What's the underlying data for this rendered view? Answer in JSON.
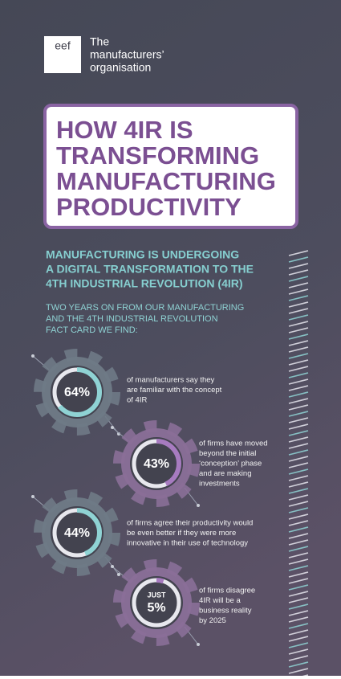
{
  "header": {
    "logo": "eef",
    "org_lines": [
      "The",
      "manufacturers’",
      "organisation"
    ]
  },
  "title_lines": [
    "HOW 4IR IS",
    "TRANSFORMING",
    "MANUFACTURING",
    "PRODUCTIVITY"
  ],
  "subtitle_lines": [
    "MANUFACTURING IS UNDERGOING",
    "A DIGITAL TRANSFORMATION TO THE",
    "4TH INDUSTRIAL REVOLUTION (4IR)"
  ],
  "intro_lines": [
    "TWO YEARS ON FROM OUR MANUFACTURING",
    "AND THE 4TH INDUSTRIAL REVOLUTION",
    "FACT CARD WE FIND:"
  ],
  "stats": [
    {
      "value": 64,
      "label": "64%",
      "color": "#8fd3d4",
      "lines": [
        "of manufacturers say they",
        "are familiar with the concept",
        "of 4IR"
      ]
    },
    {
      "value": 43,
      "label": "43%",
      "color": "#a77bc0",
      "lines": [
        "of firms have moved",
        "beyond the initial",
        "‘conception’ phase",
        "and are making",
        "investments"
      ]
    },
    {
      "value": 44,
      "label": "44%",
      "color": "#8fd3d4",
      "lines": [
        "of firms agree their productivity would",
        "be even better if they were more",
        "innovative in their use of technology"
      ]
    },
    {
      "value": 5,
      "label": "5%",
      "prefix": "JUST",
      "color": "#a77bc0",
      "lines": [
        "of firms disagree",
        "4IR will be a",
        "business reality",
        "by 2025"
      ]
    }
  ]
}
